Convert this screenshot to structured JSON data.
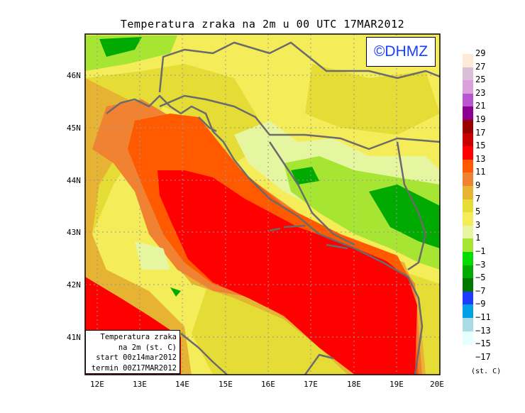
{
  "title": "Temperatura zraka na 2m u 00 UTC 17MAR2012",
  "logo": "©DHMZ",
  "info_box": [
    "Temperatura zraka",
    "na 2m (st. C)",
    "start 00z14mar2012",
    "termin 00Z17MAR2012"
  ],
  "lat_labels": [
    "46N",
    "45N",
    "44N",
    "43N",
    "42N",
    "41N"
  ],
  "lon_labels": [
    "12E",
    "13E",
    "14E",
    "15E",
    "16E",
    "17E",
    "18E",
    "19E",
    "20E"
  ],
  "colorbar": {
    "labels": [
      "29",
      "27",
      "25",
      "23",
      "21",
      "19",
      "17",
      "15",
      "13",
      "11",
      "9",
      "7",
      "5",
      "3",
      "1",
      "−1",
      "−3",
      "−5",
      "−7",
      "−9",
      "−11",
      "−13",
      "−15",
      "−17"
    ],
    "colors": [
      "#fdebd8",
      "#d9bfd8",
      "#dca0dc",
      "#b856d0",
      "#8c0090",
      "#9a0000",
      "#c80000",
      "#ff0000",
      "#ff5a00",
      "#f08232",
      "#e6b432",
      "#e6dc36",
      "#f5ec5a",
      "#e6f5a0",
      "#a6e632",
      "#00dc00",
      "#00aa00",
      "#007800",
      "#1e3cff",
      "#00a0e6",
      "#aadce6",
      "#e6ffff"
    ],
    "unit": "(st. C)"
  }
}
